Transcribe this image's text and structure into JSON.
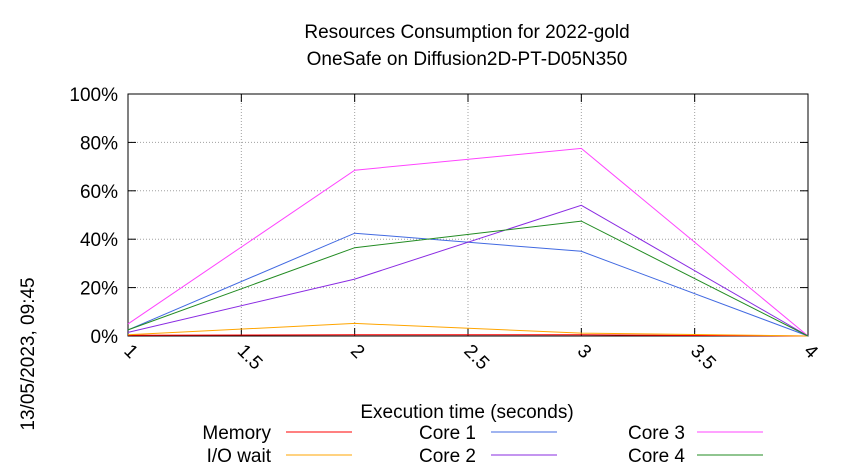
{
  "chart_data": {
    "type": "line",
    "title": "Resources Consumption for 2022-gold",
    "subtitle": "OneSafe on Diffusion2D-PT-D05N350",
    "xlabel": "Execution time (seconds)",
    "ylabel": "",
    "side_label": "13/05/2023, 09:45",
    "xlim": [
      1,
      4
    ],
    "ylim": [
      0,
      100
    ],
    "x_ticks": [
      1,
      1.5,
      2,
      2.5,
      3,
      3.5,
      4
    ],
    "x_tick_labels": [
      "1",
      "1.5",
      "2",
      "2.5",
      "3",
      "3.5",
      "4"
    ],
    "y_ticks": [
      0,
      20,
      40,
      60,
      80,
      100
    ],
    "y_tick_labels": [
      "0%",
      "20%",
      "40%",
      "60%",
      "80%",
      "100%"
    ],
    "grid": true,
    "legend_position": "bottom",
    "series": [
      {
        "name": "Memory",
        "color": "#ff0000",
        "x": [
          1,
          2,
          3,
          4
        ],
        "y": [
          0.3,
          0.5,
          0.5,
          0
        ]
      },
      {
        "name": "I/O wait",
        "color": "#ffa500",
        "x": [
          1,
          2,
          3,
          4
        ],
        "y": [
          0.5,
          5.2,
          1.2,
          0
        ]
      },
      {
        "name": "Core 1",
        "color": "#4169e1",
        "x": [
          1,
          2,
          3,
          4
        ],
        "y": [
          2.5,
          42.5,
          35,
          0
        ]
      },
      {
        "name": "Core 2",
        "color": "#8a2be2",
        "x": [
          1,
          2,
          3,
          4
        ],
        "y": [
          1.5,
          23.5,
          54,
          0
        ]
      },
      {
        "name": "Core 3",
        "color": "#ff44ff",
        "x": [
          1,
          2,
          3,
          4
        ],
        "y": [
          5,
          68.5,
          77.5,
          0
        ]
      },
      {
        "name": "Core 4",
        "color": "#228b22",
        "x": [
          1,
          2,
          3,
          4
        ],
        "y": [
          2.5,
          36.5,
          47.5,
          0
        ]
      }
    ]
  }
}
